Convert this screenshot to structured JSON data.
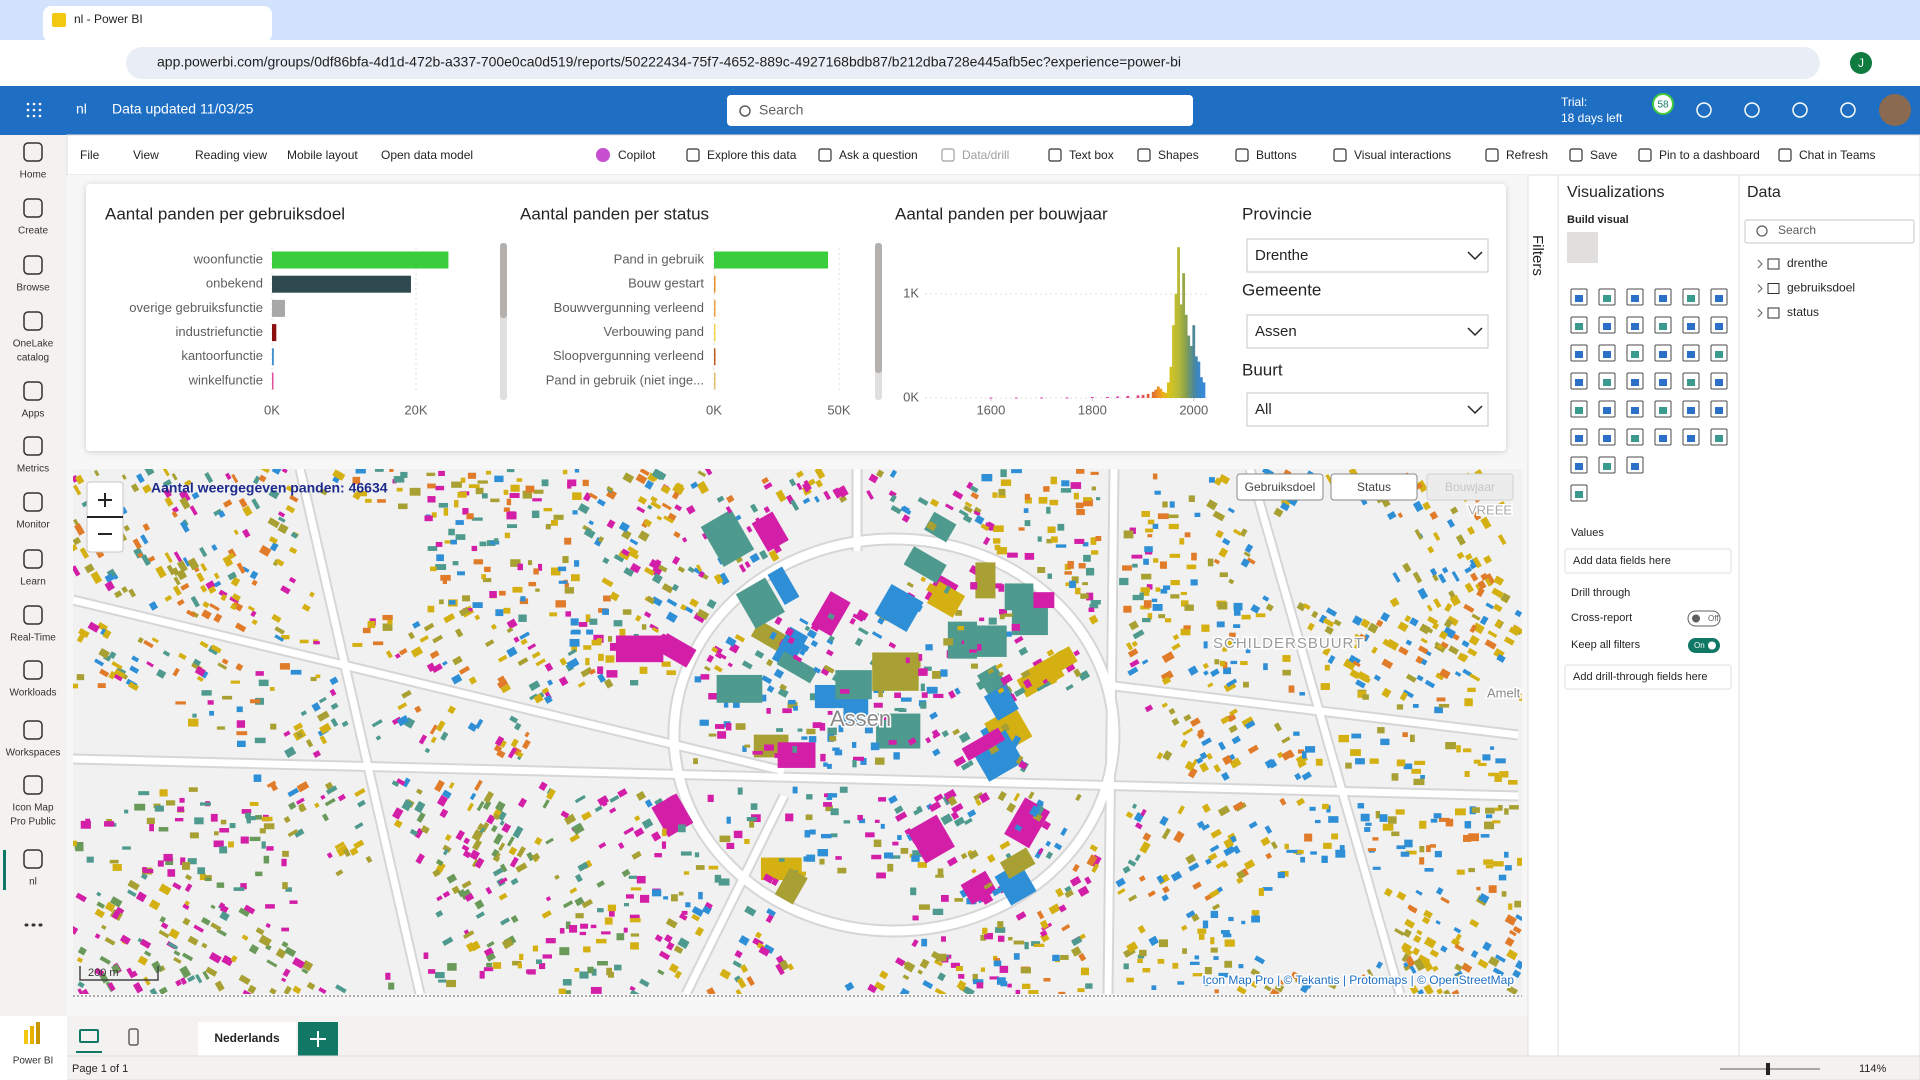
{
  "browser": {
    "tab_title": "nl - Power BI",
    "url": "app.powerbi.com/groups/0df86bfa-4d1d-472b-a337-700e0ca0d519/reports/50222434-75f7-4652-889c-4927168bdb87/b212dba728e445afb5ec?experience=power-bi",
    "profile": "J"
  },
  "header": {
    "workspace": "nl",
    "data_updated": "Data updated 11/03/25",
    "search": "Search",
    "trial": "Trial:",
    "trial_days": "18 days left",
    "notifications": "58"
  },
  "left_nav": [
    [
      "Home"
    ],
    [
      "Create"
    ],
    [
      "Browse"
    ],
    [
      "OneLake",
      "catalog"
    ],
    [
      "Apps"
    ],
    [
      "Metrics"
    ],
    [
      "Monitor"
    ],
    [
      "Learn"
    ],
    [
      "Real-Time"
    ],
    [
      "Workloads"
    ],
    [
      "Workspaces"
    ],
    [
      "Icon Map",
      "Pro Public"
    ],
    [
      "nl"
    ]
  ],
  "brand": "Power BI",
  "toolbar": {
    "left": [
      "File",
      "View",
      "Reading view",
      "Mobile layout",
      "Open data model"
    ],
    "right": [
      "Copilot",
      "Explore this data",
      "Ask a question",
      "Data/drill",
      "Text box",
      "Shapes",
      "Buttons",
      "Visual interactions",
      "Refresh",
      "Save",
      "Pin to a dashboard",
      "Chat in Teams"
    ]
  },
  "chart_data": [
    {
      "type": "bar",
      "orientation": "horizontal",
      "title": "Aantal panden per gebruiksdoel",
      "categories": [
        "woonfunctie",
        "onbekend",
        "overige gebruiksfunctie",
        "industriefunctie",
        "kantoorfunctie",
        "winkelfunctie"
      ],
      "values": [
        24500,
        19300,
        1800,
        600,
        250,
        184
      ],
      "colors": [
        "#39cc3c",
        "#2e4a50",
        "#a8a8a8",
        "#8b0f0f",
        "#3e8ed0",
        "#e0509a"
      ],
      "xlim": [
        0,
        25000
      ],
      "xticks": [
        {
          "value": 0,
          "label": "0K"
        },
        {
          "value": 20000,
          "label": "20K"
        }
      ]
    },
    {
      "type": "bar",
      "orientation": "horizontal",
      "title": "Aantal panden per status",
      "categories": [
        "Pand in gebruik",
        "Bouw gestart",
        "Bouwvergunning verleend",
        "Verbouwing pand",
        "Sloopvergunning verleend",
        "Pand in gebruik (niet inge..."
      ],
      "values": [
        45600,
        150,
        100,
        80,
        120,
        60
      ],
      "colors": [
        "#39cc3c",
        "#e8902a",
        "#f0a040",
        "#f3d34a",
        "#c05a20",
        "#e0c070"
      ],
      "xlim": [
        0,
        50000
      ],
      "xticks": [
        {
          "value": 0,
          "label": "0K"
        },
        {
          "value": 50000,
          "label": "50K"
        }
      ]
    },
    {
      "type": "bar",
      "orientation": "vertical",
      "title": "Aantal panden per bouwjaar",
      "x": [
        1600,
        1650,
        1700,
        1750,
        1800,
        1830,
        1850,
        1870,
        1890,
        1900,
        1910,
        1920,
        1925,
        1930,
        1935,
        1940,
        1945,
        1950,
        1955,
        1960,
        1965,
        1970,
        1975,
        1980,
        1985,
        1990,
        1995,
        2000,
        2005,
        2010,
        2015,
        2020
      ],
      "values": [
        5,
        5,
        5,
        5,
        10,
        10,
        15,
        20,
        25,
        30,
        40,
        60,
        80,
        110,
        90,
        60,
        50,
        150,
        300,
        700,
        1000,
        1450,
        900,
        1200,
        800,
        600,
        500,
        700,
        400,
        350,
        200,
        150
      ],
      "colors": [
        "#e040b0",
        "#e040b0",
        "#e040b0",
        "#e040b0",
        "#e040b0",
        "#e040b0",
        "#e040b0",
        "#e0409a",
        "#e04a80",
        "#e05060",
        "#e06040",
        "#e07030",
        "#e88028",
        "#ee9020",
        "#f0a020",
        "#e8b018",
        "#e0b818",
        "#d8c018",
        "#d0c020",
        "#c8c028",
        "#c0bc30",
        "#b8b838",
        "#a8b040",
        "#98a848",
        "#88a050",
        "#709868",
        "#609080",
        "#508898",
        "#4088b0",
        "#3a88c8",
        "#3888d0",
        "#3888d8"
      ],
      "xlim": [
        1470,
        2030
      ],
      "xticks": [
        1600,
        1800,
        2000
      ],
      "ylim": [
        0,
        1500
      ],
      "yticks": [
        {
          "value": 0,
          "label": "0K"
        },
        {
          "value": 1000,
          "label": "1K"
        }
      ]
    }
  ],
  "slicers": [
    {
      "title": "Provincie",
      "value": "Drenthe"
    },
    {
      "title": "Gemeente",
      "value": "Assen"
    },
    {
      "title": "Buurt",
      "value": "All"
    }
  ],
  "map": {
    "count_label": "Aantal weergegeven panden: 46634",
    "buttons": [
      "Gebruiksdoel",
      "Status",
      "Bouwjaar"
    ],
    "places": [
      "Assen",
      "SCHILDERSBUURT",
      "Amelt",
      "VREEE"
    ],
    "scale": "200 m",
    "attribution": "Icon Map Pro | © Tekantis | Protomaps | © OpenStreetMap"
  },
  "filters_pane": {
    "title": "Filters"
  },
  "visualizations": {
    "title": "Visualizations",
    "build_visual": "Build visual",
    "values": "Values",
    "add_fields": "Add data fields here",
    "drill_through": "Drill through",
    "cross_report": "Cross-report",
    "cross_report_state": "Off",
    "keep_filters": "Keep all filters",
    "keep_filters_state": "On",
    "add_drill": "Add drill-through fields here"
  },
  "data_pane": {
    "title": "Data",
    "search": "Search",
    "tables": [
      "drenthe",
      "gebruiksdoel",
      "status"
    ]
  },
  "footer": {
    "page_tab": "Nederlands",
    "page_count": "Page 1 of 1",
    "zoom": "114%"
  }
}
